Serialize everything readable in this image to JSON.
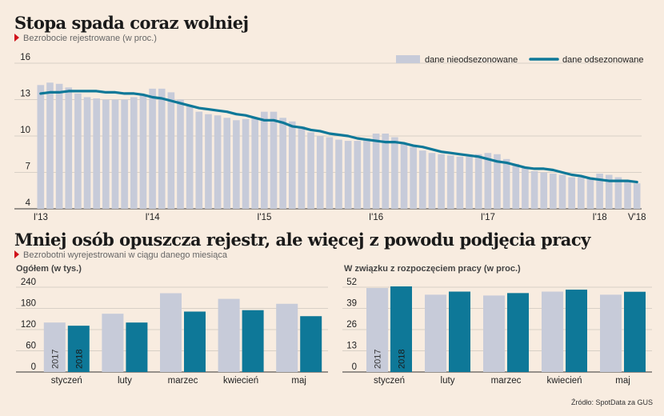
{
  "top": {
    "title": "Stopa spada coraz wolniej",
    "subtitle": "Bezrobocie rejestrowane (w proc.)"
  },
  "bottom": {
    "title": "Mniej osób opuszcza rejestr, ale więcej z powodu podjęcia pracy",
    "subtitle": "Bezrobotni wyrejestrowani w ciągu danego miesiąca"
  },
  "source": "Źródło: SpotData za GUS",
  "colors": {
    "background": "#f8ece0",
    "bar_nsa": "#c7cbd9",
    "line_sa": "#0e7898",
    "bar_2017": "#c7cbd9",
    "bar_2018": "#0e7898",
    "accent": "#d0121b"
  },
  "chart_data": [
    {
      "type": "bar",
      "title": "Stopa spada coraz wolniej",
      "subtitle": "Bezrobocie rejestrowane (w proc.)",
      "legend": [
        "dane nieodsezonowane",
        "dane odsezonowane"
      ],
      "legend_position": "top-right",
      "ylim": [
        4,
        16
      ],
      "yticks": [
        4,
        7,
        10,
        13,
        16
      ],
      "xticks": [
        {
          "index": 0,
          "label": "I'13"
        },
        {
          "index": 12,
          "label": "I'14"
        },
        {
          "index": 24,
          "label": "I'15"
        },
        {
          "index": 36,
          "label": "I'16"
        },
        {
          "index": 48,
          "label": "I'17"
        },
        {
          "index": 60,
          "label": "I'18"
        },
        {
          "index": 64,
          "label": "V'18"
        }
      ],
      "grid": true,
      "series": [
        {
          "name": "dane nieodsezonowane",
          "type": "bar",
          "values": [
            14.2,
            14.4,
            14.3,
            14.0,
            13.5,
            13.2,
            13.1,
            13.0,
            13.0,
            13.0,
            13.2,
            13.4,
            13.9,
            13.9,
            13.6,
            13.0,
            12.5,
            12.0,
            11.8,
            11.7,
            11.5,
            11.3,
            11.4,
            11.5,
            12.0,
            12.0,
            11.5,
            11.2,
            10.8,
            10.3,
            10.0,
            9.9,
            9.7,
            9.6,
            9.6,
            9.8,
            10.2,
            10.2,
            9.9,
            9.4,
            9.1,
            8.8,
            8.6,
            8.5,
            8.4,
            8.3,
            8.3,
            8.5,
            8.6,
            8.5,
            8.1,
            7.7,
            7.4,
            7.1,
            7.0,
            6.9,
            6.8,
            6.6,
            6.6,
            6.6,
            6.9,
            6.8,
            6.6,
            6.3,
            6.1
          ]
        },
        {
          "name": "dane odsezonowane",
          "type": "line",
          "values": [
            13.5,
            13.6,
            13.6,
            13.7,
            13.7,
            13.7,
            13.7,
            13.6,
            13.6,
            13.5,
            13.5,
            13.4,
            13.2,
            13.1,
            12.9,
            12.7,
            12.5,
            12.3,
            12.2,
            12.1,
            12.0,
            11.8,
            11.7,
            11.5,
            11.3,
            11.3,
            11.1,
            10.8,
            10.7,
            10.5,
            10.4,
            10.2,
            10.1,
            10.0,
            9.8,
            9.7,
            9.6,
            9.5,
            9.5,
            9.4,
            9.2,
            9.1,
            8.9,
            8.7,
            8.6,
            8.5,
            8.4,
            8.3,
            8.1,
            7.9,
            7.8,
            7.6,
            7.4,
            7.3,
            7.3,
            7.2,
            7.0,
            6.8,
            6.7,
            6.5,
            6.4,
            6.3,
            6.3,
            6.3,
            6.2
          ]
        }
      ]
    },
    {
      "type": "bar",
      "title": "Ogółem (w tys.)",
      "categories": [
        "styczeń",
        "luty",
        "marzec",
        "kwiecień",
        "maj"
      ],
      "ylim": [
        0,
        240
      ],
      "yticks": [
        0,
        60,
        120,
        180,
        240
      ],
      "series": [
        {
          "name": "2017",
          "values": [
            140,
            165,
            223,
            207,
            193
          ]
        },
        {
          "name": "2018",
          "values": [
            131,
            140,
            171,
            175,
            158
          ]
        }
      ]
    },
    {
      "type": "bar",
      "title": "W związku z rozpoczęciem pracy (w proc.)",
      "categories": [
        "styczeń",
        "luty",
        "marzec",
        "kwiecień",
        "maj"
      ],
      "ylim": [
        0,
        52
      ],
      "yticks": [
        0,
        13,
        26,
        39,
        52
      ],
      "series": [
        {
          "name": "2017",
          "values": [
            51.5,
            47.4,
            46.9,
            49.3,
            47.4
          ]
        },
        {
          "name": "2018",
          "values": [
            52.5,
            49.3,
            48.4,
            50.5,
            49.2
          ]
        }
      ]
    }
  ]
}
